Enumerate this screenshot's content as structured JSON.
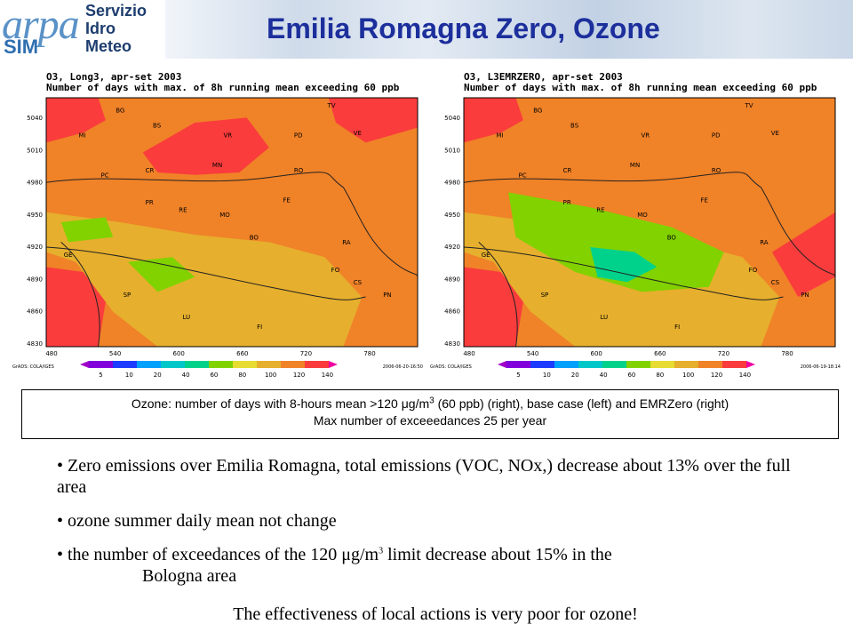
{
  "header": {
    "title": "Emilia Romagna Zero, Ozone",
    "logo": {
      "arpa": "arpa",
      "sim": "SIM",
      "line1": "Servizio",
      "line2": "Idro",
      "line3": "Meteo"
    }
  },
  "maps": [
    {
      "id": "base",
      "title_line1": "O3, Long3, apr-set 2003",
      "title_line2": "Number of days with max. of 8h running mean exceeding 60 ppb",
      "credit": "GrADS: COLA/IGES",
      "timestamp": "2006-06-20-16:50"
    },
    {
      "id": "emrzero",
      "title_line1": "O3, L3EMRZERO, apr-set 2003",
      "title_line2": "Number of days with max. of 8h running mean exceeding 60 ppb",
      "credit": "GrADS: COLA/IGES",
      "timestamp": "2006-06-19-18:14"
    }
  ],
  "axes": {
    "x_ticks": [
      "480",
      "540",
      "600",
      "660",
      "720",
      "780"
    ],
    "y_ticks": [
      "5040",
      "5010",
      "4980",
      "4950",
      "4920",
      "4890",
      "4860",
      "4830"
    ]
  },
  "legend": {
    "labels": [
      "5",
      "10",
      "20",
      "40",
      "60",
      "80",
      "100",
      "120",
      "140"
    ],
    "colors": [
      "#a000c8",
      "#8200dc",
      "#1e3cff",
      "#00a0ff",
      "#00c8c8",
      "#00d28c",
      "#82d200",
      "#e6dc32",
      "#e6af2d",
      "#f08228",
      "#fa3c3c",
      "#f000a0"
    ]
  },
  "city_labels": [
    "BG",
    "BS",
    "VR",
    "PD",
    "VE",
    "TV",
    "MI",
    "CR",
    "MN",
    "RO",
    "PC",
    "PR",
    "RE",
    "MO",
    "FE",
    "BO",
    "RA",
    "GE",
    "FO",
    "CS",
    "SP",
    "PN",
    "LU",
    "FI"
  ],
  "caption": {
    "line1_pre": "Ozone: number of days with 8-hours mean >120 μg/m",
    "line1_sup": "3",
    "line1_post": " (60 ppb) (right), base case (left) and EMRZero (right)",
    "line2": "Max number of exceeedances 25 per year"
  },
  "bullets": {
    "b1": "• Zero emissions over Emilia Romagna, total emissions (VOC, NOx,) decrease about 13% over the full area",
    "b2": "• ozone summer daily mean not change",
    "b3_pre": "• the number of exceedances of the 120 ",
    "b3_mu": "μ",
    "b3_unit": "g/m",
    "b3_sup": "3",
    "b3_post": " limit decrease about 15% in the",
    "b3_line2": "Bologna area"
  },
  "conclusion": "The effectiveness of local actions is very poor for ozone!"
}
